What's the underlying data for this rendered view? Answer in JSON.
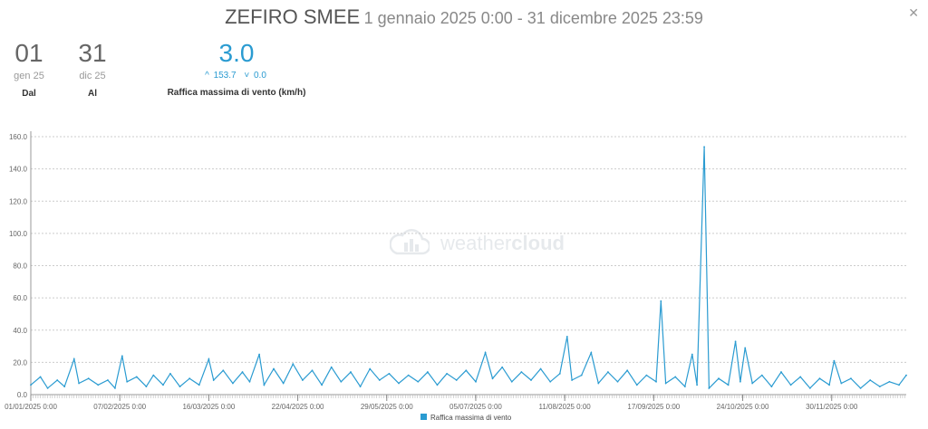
{
  "header": {
    "station": "ZEFIRO SMEE",
    "range": "1 gennaio 2025 0:00 - 31 dicembre 2025 23:59"
  },
  "close_icon": "close-icon",
  "stats": {
    "from": {
      "day": "01",
      "month": "gen 25",
      "label": "Dal"
    },
    "to": {
      "day": "31",
      "month": "dic 25",
      "label": "Al"
    },
    "main": {
      "value": "3.0",
      "max": "153.7",
      "min": "0.0",
      "label": "Raffica massima di vento (km/h)"
    }
  },
  "watermark": {
    "text_light": "weather",
    "text_bold": "cloud"
  },
  "colors": {
    "series": "#2a9bd1",
    "axis": "#999999",
    "grid": "#cccccc"
  },
  "chart_data": {
    "type": "line",
    "ylim": [
      0,
      160
    ],
    "yticks": [
      "0.0",
      "20.0",
      "40.0",
      "60.0",
      "80.0",
      "100.0",
      "120.0",
      "140.0",
      "160.0"
    ],
    "xlim": [
      "2025-01-01",
      "2025-12-31"
    ],
    "xticks": [
      "01/01/2025 0:00",
      "07/02/2025 0:00",
      "16/03/2025 0:00",
      "22/04/2025 0:00",
      "29/05/2025 0:00",
      "05/07/2025 0:00",
      "11/08/2025 0:00",
      "17/09/2025 0:00",
      "24/10/2025 0:00",
      "30/11/2025 0:00"
    ],
    "grid": true,
    "legend": "bottom-center",
    "series": [
      {
        "name": "Raffica massima di vento",
        "points": [
          [
            "2025-01-01",
            6
          ],
          [
            "2025-01-05",
            11
          ],
          [
            "2025-01-08",
            4
          ],
          [
            "2025-01-12",
            9
          ],
          [
            "2025-01-15",
            5
          ],
          [
            "2025-01-19",
            22
          ],
          [
            "2025-01-21",
            7
          ],
          [
            "2025-01-25",
            10
          ],
          [
            "2025-01-29",
            6
          ],
          [
            "2025-02-02",
            9
          ],
          [
            "2025-02-05",
            4
          ],
          [
            "2025-02-08",
            24
          ],
          [
            "2025-02-10",
            8
          ],
          [
            "2025-02-14",
            11
          ],
          [
            "2025-02-18",
            5
          ],
          [
            "2025-02-21",
            12
          ],
          [
            "2025-02-25",
            6
          ],
          [
            "2025-02-28",
            13
          ],
          [
            "2025-03-04",
            5
          ],
          [
            "2025-03-08",
            10
          ],
          [
            "2025-03-12",
            6
          ],
          [
            "2025-03-16",
            22
          ],
          [
            "2025-03-18",
            9
          ],
          [
            "2025-03-22",
            15
          ],
          [
            "2025-03-26",
            7
          ],
          [
            "2025-03-30",
            14
          ],
          [
            "2025-04-02",
            8
          ],
          [
            "2025-04-06",
            25
          ],
          [
            "2025-04-08",
            6
          ],
          [
            "2025-04-12",
            16
          ],
          [
            "2025-04-16",
            7
          ],
          [
            "2025-04-20",
            19
          ],
          [
            "2025-04-24",
            9
          ],
          [
            "2025-04-28",
            15
          ],
          [
            "2025-05-02",
            6
          ],
          [
            "2025-05-06",
            17
          ],
          [
            "2025-05-10",
            8
          ],
          [
            "2025-05-14",
            14
          ],
          [
            "2025-05-18",
            5
          ],
          [
            "2025-05-22",
            16
          ],
          [
            "2025-05-26",
            9
          ],
          [
            "2025-05-30",
            13
          ],
          [
            "2025-06-03",
            7
          ],
          [
            "2025-06-07",
            12
          ],
          [
            "2025-06-11",
            8
          ],
          [
            "2025-06-15",
            14
          ],
          [
            "2025-06-19",
            6
          ],
          [
            "2025-06-23",
            13
          ],
          [
            "2025-06-27",
            9
          ],
          [
            "2025-07-01",
            15
          ],
          [
            "2025-07-05",
            8
          ],
          [
            "2025-07-09",
            26
          ],
          [
            "2025-07-12",
            10
          ],
          [
            "2025-07-16",
            17
          ],
          [
            "2025-07-20",
            8
          ],
          [
            "2025-07-24",
            14
          ],
          [
            "2025-07-28",
            9
          ],
          [
            "2025-08-01",
            16
          ],
          [
            "2025-08-05",
            8
          ],
          [
            "2025-08-09",
            13
          ],
          [
            "2025-08-12",
            36
          ],
          [
            "2025-08-14",
            9
          ],
          [
            "2025-08-18",
            12
          ],
          [
            "2025-08-22",
            26
          ],
          [
            "2025-08-25",
            7
          ],
          [
            "2025-08-29",
            14
          ],
          [
            "2025-09-02",
            8
          ],
          [
            "2025-09-06",
            15
          ],
          [
            "2025-09-10",
            6
          ],
          [
            "2025-09-14",
            12
          ],
          [
            "2025-09-18",
            8
          ],
          [
            "2025-09-20",
            58
          ],
          [
            "2025-09-22",
            7
          ],
          [
            "2025-09-26",
            11
          ],
          [
            "2025-09-30",
            5
          ],
          [
            "2025-10-03",
            25
          ],
          [
            "2025-10-05",
            6
          ],
          [
            "2025-10-08",
            153.7
          ],
          [
            "2025-10-10",
            4
          ],
          [
            "2025-10-14",
            10
          ],
          [
            "2025-10-18",
            6
          ],
          [
            "2025-10-21",
            33
          ],
          [
            "2025-10-23",
            8
          ],
          [
            "2025-10-25",
            29
          ],
          [
            "2025-10-28",
            7
          ],
          [
            "2025-11-01",
            12
          ],
          [
            "2025-11-05",
            5
          ],
          [
            "2025-11-09",
            14
          ],
          [
            "2025-11-13",
            6
          ],
          [
            "2025-11-17",
            11
          ],
          [
            "2025-11-21",
            4
          ],
          [
            "2025-11-25",
            10
          ],
          [
            "2025-11-29",
            6
          ],
          [
            "2025-12-01",
            21
          ],
          [
            "2025-12-04",
            7
          ],
          [
            "2025-12-08",
            10
          ],
          [
            "2025-12-12",
            4
          ],
          [
            "2025-12-16",
            9
          ],
          [
            "2025-12-20",
            5
          ],
          [
            "2025-12-24",
            8
          ],
          [
            "2025-12-28",
            6
          ],
          [
            "2025-12-31",
            12
          ]
        ]
      }
    ]
  }
}
